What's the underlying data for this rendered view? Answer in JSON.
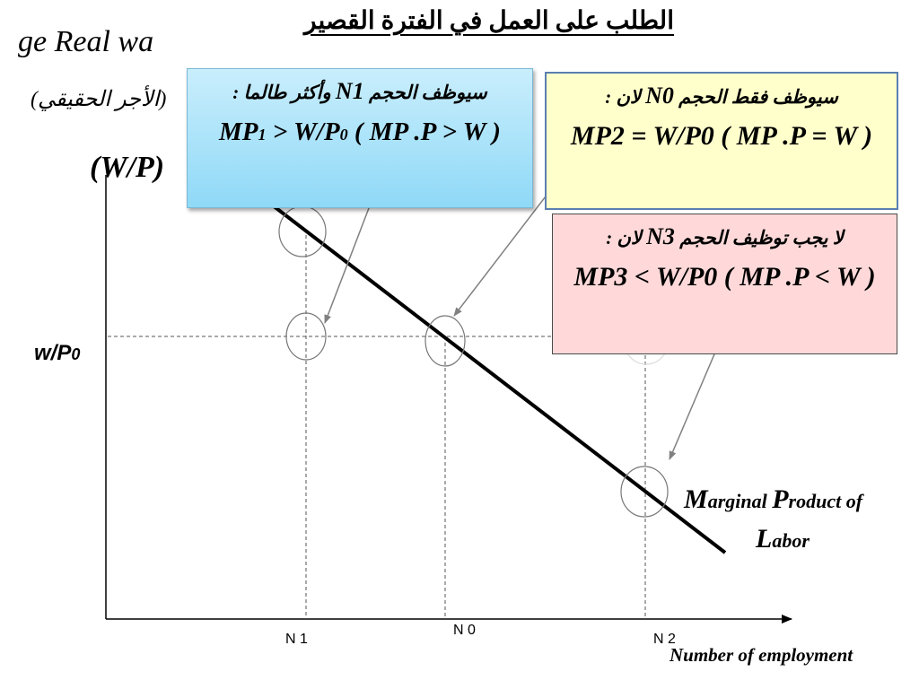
{
  "title": "الطلب على العمل في الفترة القصير",
  "y_axis": {
    "label_en": "ge Real wa",
    "label_ar": "(الأجر الحقيقي)",
    "label_symbol": "(W/P)",
    "level_label": "w/P",
    "level_sub": "0"
  },
  "x_axis": {
    "label": "Number of employment",
    "ticks": [
      "N 1",
      "N 0",
      "N 2"
    ]
  },
  "curve_label": {
    "line1_cap1": "M",
    "line1_rest1": "arginal ",
    "line1_cap2": "P",
    "line1_rest2": "roduct of",
    "line2_cap": "L",
    "line2_rest": "abor"
  },
  "box_n1": {
    "head": "سيوظف الحجم ",
    "head_big": "N1",
    "head_tail": " وأكثر طالما  :",
    "body_a": "MP",
    "body_sub1": "1",
    "body_b": " > W/P",
    "body_sub2": "0",
    "body_c": "  ( MP .P > W )"
  },
  "box_n0": {
    "head": "سيوظف فقط الحجم ",
    "head_big": "N0",
    "head_tail": " لان :",
    "body": "MP2 = W/P0  ( MP .P = W )"
  },
  "box_n3": {
    "head": "لا يجب توظيف الحجم ",
    "head_big": "N3",
    "head_tail": " لان :",
    "body": "MP3 < W/P0  ( MP .P < W )"
  },
  "colors": {
    "box_n1_bg": "#8fd9f7",
    "box_n0_bg": "#ffffcc",
    "box_n3_bg": "#ffd9d9",
    "pointer_arrows": "#808080"
  }
}
